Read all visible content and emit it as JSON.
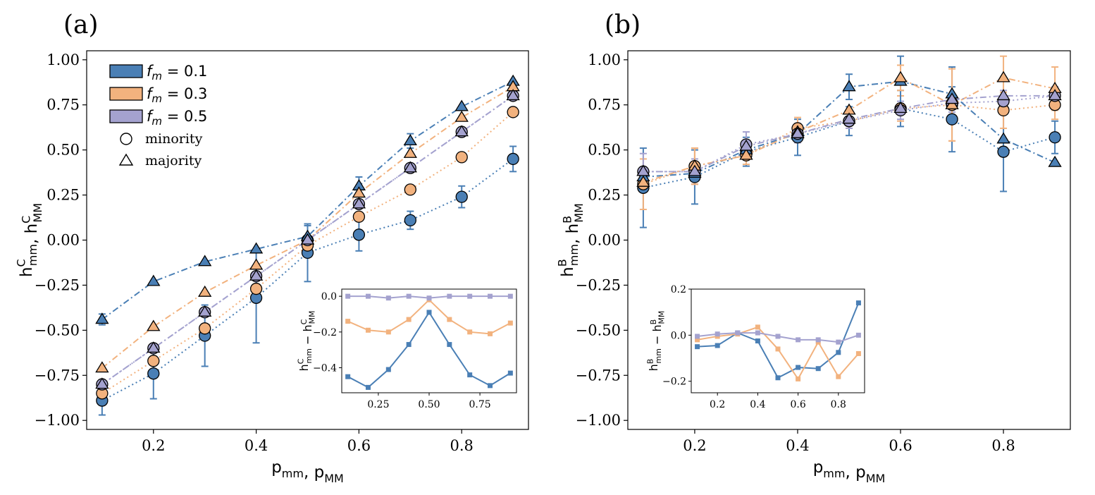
{
  "colors": {
    "f01": "#4a7fb5",
    "f03": "#f2b27e",
    "f05": "#a4a2cf",
    "axis": "#000000"
  },
  "legend": {
    "entries": [
      {
        "label": "f_m = 0.1",
        "color": "#4a7fb5"
      },
      {
        "label": "f_m = 0.3",
        "color": "#f2b27e"
      },
      {
        "label": "f_m = 0.5",
        "color": "#a4a2cf"
      }
    ],
    "marker_entries": [
      {
        "label": "minority",
        "marker": "circle"
      },
      {
        "label": "majority",
        "marker": "triangle"
      }
    ]
  },
  "chart_data": [
    {
      "panel_label": "(a)",
      "type": "line",
      "xlabel": "p_mm, p_MM",
      "ylabel": "h^C_mm, h^C_MM",
      "xlim": [
        0.07,
        0.93
      ],
      "ylim": [
        -1.05,
        1.05
      ],
      "xticks": [
        0.2,
        0.4,
        0.6,
        0.8
      ],
      "xtick_labels": [
        "0.2",
        "0.4",
        "0.6",
        "0.8"
      ],
      "yticks": [
        -1.0,
        -0.75,
        -0.5,
        -0.25,
        0.0,
        0.25,
        0.5,
        0.75,
        1.0
      ],
      "ytick_labels": [
        "−1.00",
        "−0.75",
        "−0.50",
        "−0.25",
        "0.00",
        "0.25",
        "0.50",
        "0.75",
        "1.00"
      ],
      "x": [
        0.1,
        0.2,
        0.3,
        0.4,
        0.5,
        0.6,
        0.7,
        0.8,
        0.9
      ],
      "series": [
        {
          "name": "f_m = 0.1 minority",
          "group": "f01",
          "marker": "circle",
          "linestyle": "dotted",
          "values": [
            -0.89,
            -0.74,
            -0.53,
            -0.32,
            -0.07,
            0.03,
            0.11,
            0.24,
            0.45
          ],
          "errors": [
            0.08,
            0.14,
            0.17,
            0.25,
            0.16,
            0.09,
            0.05,
            0.06,
            0.07
          ]
        },
        {
          "name": "f_m = 0.3 minority",
          "group": "f03",
          "marker": "circle",
          "linestyle": "dotted",
          "values": [
            -0.85,
            -0.67,
            -0.49,
            -0.27,
            -0.03,
            0.13,
            0.28,
            0.46,
            0.71
          ],
          "errors": [
            0.0,
            0.0,
            0.0,
            0.0,
            0.0,
            0.0,
            0.0,
            0.0,
            0.0
          ]
        },
        {
          "name": "f_m = 0.5 minority",
          "group": "f05",
          "marker": "circle",
          "linestyle": "dotted",
          "values": [
            -0.8,
            -0.6,
            -0.4,
            -0.2,
            0.0,
            0.2,
            0.4,
            0.6,
            0.8
          ],
          "errors": [
            0.0,
            0.0,
            0.0,
            0.0,
            0.0,
            0.0,
            0.0,
            0.0,
            0.0
          ]
        },
        {
          "name": "f_m = 0.1 majority",
          "group": "f01",
          "marker": "triangle",
          "linestyle": "dashdot",
          "values": [
            -0.44,
            -0.23,
            -0.12,
            -0.05,
            0.02,
            0.3,
            0.55,
            0.74,
            0.88
          ],
          "errors": [
            0.03,
            0.0,
            0.0,
            0.0,
            0.06,
            0.05,
            0.04,
            0.0,
            0.0
          ]
        },
        {
          "name": "f_m = 0.3 majority",
          "group": "f03",
          "marker": "triangle",
          "linestyle": "dashdot",
          "values": [
            -0.71,
            -0.48,
            -0.29,
            -0.14,
            0.0,
            0.26,
            0.48,
            0.68,
            0.85
          ],
          "errors": [
            0.0,
            0.0,
            0.0,
            0.0,
            0.0,
            0.0,
            0.0,
            0.0,
            0.0
          ]
        },
        {
          "name": "f_m = 0.5 majority",
          "group": "f05",
          "marker": "triangle",
          "linestyle": "dashdot",
          "values": [
            -0.8,
            -0.6,
            -0.4,
            -0.2,
            0.0,
            0.2,
            0.4,
            0.6,
            0.8
          ],
          "errors": [
            0.0,
            0.0,
            0.0,
            0.0,
            0.0,
            0.0,
            0.0,
            0.0,
            0.0
          ]
        }
      ],
      "inset": {
        "ylabel": "h^C_mm − h^C_MM",
        "xlim": [
          0.07,
          0.93
        ],
        "ylim": [
          -0.54,
          0.04
        ],
        "xticks": [
          0.25,
          0.5,
          0.75
        ],
        "xtick_labels": [
          "0.25",
          "0.50",
          "0.75"
        ],
        "yticks": [
          0.0,
          -0.2,
          -0.4
        ],
        "ytick_labels": [
          "0.0",
          "−0.2",
          "−0.4"
        ],
        "x": [
          0.1,
          0.2,
          0.3,
          0.4,
          0.5,
          0.6,
          0.7,
          0.8,
          0.9
        ],
        "series": [
          {
            "group": "f01",
            "values": [
              -0.45,
              -0.51,
              -0.41,
              -0.27,
              -0.09,
              -0.27,
              -0.44,
              -0.5,
              -0.43
            ]
          },
          {
            "group": "f03",
            "values": [
              -0.14,
              -0.19,
              -0.2,
              -0.13,
              -0.02,
              -0.13,
              -0.2,
              -0.21,
              -0.15
            ]
          },
          {
            "group": "f05",
            "values": [
              0.0,
              0.0,
              -0.01,
              0.0,
              -0.01,
              0.0,
              0.0,
              0.0,
              0.0
            ]
          }
        ]
      }
    },
    {
      "panel_label": "(b)",
      "type": "line",
      "xlabel": "p_mm, p_MM",
      "ylabel": "h^B_mm, h^B_MM",
      "xlim": [
        0.07,
        0.93
      ],
      "ylim": [
        -1.05,
        1.05
      ],
      "xticks": [
        0.2,
        0.4,
        0.6,
        0.8
      ],
      "xtick_labels": [
        "0.2",
        "0.4",
        "0.6",
        "0.8"
      ],
      "yticks": [
        -1.0,
        -0.75,
        -0.5,
        -0.25,
        0.0,
        0.25,
        0.5,
        0.75,
        1.0
      ],
      "ytick_labels": [
        "−1.00",
        "−0.75",
        "−0.50",
        "−0.25",
        "0.00",
        "0.25",
        "0.50",
        "0.75",
        "1.00"
      ],
      "x": [
        0.1,
        0.2,
        0.3,
        0.4,
        0.5,
        0.6,
        0.7,
        0.8,
        0.9
      ],
      "series": [
        {
          "name": "f_m = 0.1 minority",
          "group": "f01",
          "marker": "circle",
          "linestyle": "dotted",
          "values": [
            0.29,
            0.35,
            0.49,
            0.57,
            0.66,
            0.73,
            0.67,
            0.49,
            0.57
          ],
          "errors": [
            0.22,
            0.15,
            0.08,
            0.1,
            0.08,
            0.1,
            0.18,
            0.22,
            0.09
          ]
        },
        {
          "name": "f_m = 0.3 minority",
          "group": "f03",
          "marker": "circle",
          "linestyle": "dotted",
          "values": [
            0.31,
            0.41,
            0.47,
            0.62,
            0.66,
            0.73,
            0.75,
            0.72,
            0.75
          ],
          "errors": [
            0.14,
            0.1,
            0.05,
            0.06,
            0.04,
            0.07,
            0.2,
            0.1,
            0.08
          ]
        },
        {
          "name": "f_m = 0.5 minority",
          "group": "f05",
          "marker": "circle",
          "linestyle": "dotted",
          "values": [
            0.38,
            0.38,
            0.53,
            0.59,
            0.66,
            0.72,
            0.76,
            0.77,
            0.8
          ],
          "errors": [
            0.1,
            0.07,
            0.07,
            0.05,
            0.04,
            0.05,
            0.05,
            0.06,
            0.05
          ]
        },
        {
          "name": "f_m = 0.1 majority",
          "group": "f01",
          "marker": "triangle",
          "linestyle": "dashdot",
          "values": [
            0.35,
            0.37,
            0.5,
            0.59,
            0.85,
            0.88,
            0.81,
            0.56,
            0.43
          ],
          "errors": [
            0.0,
            0.0,
            0.0,
            0.0,
            0.07,
            0.14,
            0.15,
            0.0,
            0.0
          ]
        },
        {
          "name": "f_m = 0.3 majority",
          "group": "f03",
          "marker": "triangle",
          "linestyle": "dashdot",
          "values": [
            0.32,
            0.41,
            0.47,
            0.6,
            0.72,
            0.9,
            0.75,
            0.9,
            0.84
          ],
          "errors": [
            0.0,
            0.1,
            0.0,
            0.0,
            0.0,
            0.07,
            0.2,
            0.12,
            0.12
          ]
        },
        {
          "name": "f_m = 0.5 majority",
          "group": "f05",
          "marker": "triangle",
          "linestyle": "dashdot",
          "values": [
            0.38,
            0.38,
            0.52,
            0.59,
            0.67,
            0.73,
            0.78,
            0.8,
            0.8
          ],
          "errors": [
            0.0,
            0.0,
            0.0,
            0.0,
            0.0,
            0.0,
            0.0,
            0.0,
            0.0
          ]
        }
      ],
      "inset": {
        "ylabel": "h^B_mm − h^B_MM",
        "xlim": [
          0.07,
          0.93
        ],
        "ylim": [
          -0.25,
          0.2
        ],
        "xticks": [
          0.2,
          0.4,
          0.6,
          0.8
        ],
        "xtick_labels": [
          "0.2",
          "0.4",
          "0.6",
          "0.8"
        ],
        "yticks": [
          0.2,
          0.0,
          -0.2
        ],
        "ytick_labels": [
          "0.2",
          "0.0",
          "−0.2"
        ],
        "x": [
          0.1,
          0.2,
          0.3,
          0.4,
          0.5,
          0.6,
          0.7,
          0.8,
          0.9
        ],
        "series": [
          {
            "group": "f01",
            "values": [
              -0.05,
              -0.045,
              0.01,
              -0.025,
              -0.185,
              -0.14,
              -0.145,
              -0.075,
              0.14
            ]
          },
          {
            "group": "f03",
            "values": [
              -0.02,
              -0.005,
              0.005,
              0.035,
              -0.06,
              -0.19,
              -0.03,
              -0.18,
              -0.08
            ]
          },
          {
            "group": "f05",
            "values": [
              -0.005,
              0.005,
              0.01,
              0.01,
              -0.005,
              -0.02,
              -0.02,
              -0.03,
              0.0
            ]
          }
        ]
      }
    }
  ]
}
